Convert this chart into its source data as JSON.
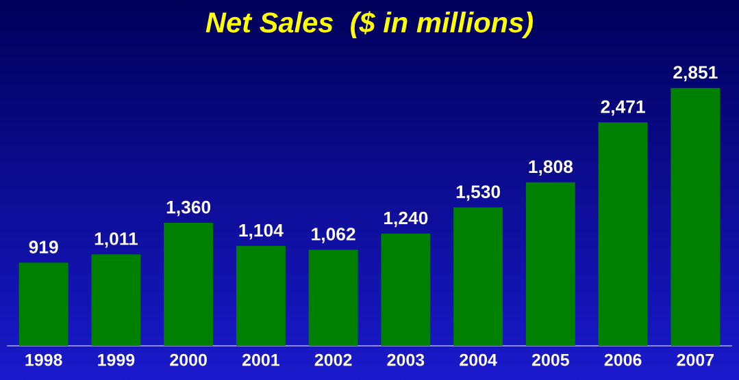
{
  "chart_data": {
    "type": "bar",
    "title": "Net Sales  ($ in millions)",
    "categories": [
      "1998",
      "1999",
      "2000",
      "2001",
      "2002",
      "2003",
      "2004",
      "2005",
      "2006",
      "2007"
    ],
    "values": [
      919,
      1011,
      1360,
      1104,
      1062,
      1240,
      1530,
      1808,
      2471,
      2851
    ],
    "value_labels": [
      "919",
      "1,011",
      "1,360",
      "1,104",
      "1,062",
      "1,240",
      "1,530",
      "1,808",
      "2,471",
      "2,851"
    ],
    "color": "#008000"
  }
}
